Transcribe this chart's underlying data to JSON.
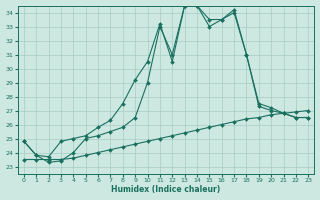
{
  "xlabel": "Humidex (Indice chaleur)",
  "bg_color": "#cce8e0",
  "grid_color": "#a8ccc4",
  "line_color": "#1a7060",
  "xlim": [
    -0.5,
    23.5
  ],
  "ylim": [
    22.5,
    34.5
  ],
  "yticks": [
    23,
    24,
    25,
    26,
    27,
    28,
    29,
    30,
    31,
    32,
    33,
    34
  ],
  "xticks": [
    0,
    1,
    2,
    3,
    4,
    5,
    6,
    7,
    8,
    9,
    10,
    11,
    12,
    13,
    14,
    15,
    16,
    17,
    18,
    19,
    20,
    21,
    22,
    23
  ],
  "series1_x": [
    0,
    1,
    2,
    3,
    4,
    5,
    6,
    7,
    8,
    9,
    10,
    11,
    12,
    13,
    14,
    15,
    16,
    17,
    18,
    19,
    20,
    21,
    22,
    23
  ],
  "series1_y": [
    24.8,
    23.8,
    23.7,
    24.8,
    25.0,
    25.2,
    25.8,
    26.3,
    27.5,
    29.2,
    30.5,
    33.2,
    30.5,
    34.5,
    34.5,
    33.0,
    33.5,
    34.0,
    31.0,
    27.5,
    27.2,
    26.8,
    26.5,
    26.5
  ],
  "series2_x": [
    0,
    1,
    2,
    3,
    4,
    5,
    6,
    7,
    8,
    9,
    10,
    11,
    12,
    13,
    14,
    15,
    16,
    17,
    18,
    19,
    20,
    21,
    22,
    23
  ],
  "series2_y": [
    24.8,
    23.8,
    23.3,
    23.4,
    24.0,
    25.0,
    25.2,
    25.5,
    25.8,
    26.5,
    29.0,
    33.0,
    31.0,
    34.5,
    34.5,
    33.5,
    33.5,
    34.2,
    31.0,
    27.3,
    27.0,
    26.8,
    26.5,
    26.5
  ],
  "series3_x": [
    0,
    1,
    2,
    3,
    4,
    5,
    6,
    7,
    8,
    9,
    10,
    11,
    12,
    13,
    14,
    15,
    16,
    17,
    18,
    19,
    20,
    21,
    22,
    23
  ],
  "series3_y": [
    23.5,
    23.5,
    23.5,
    23.5,
    23.6,
    23.8,
    24.0,
    24.2,
    24.4,
    24.6,
    24.8,
    25.0,
    25.2,
    25.4,
    25.6,
    25.8,
    26.0,
    26.2,
    26.4,
    26.5,
    26.7,
    26.8,
    26.9,
    27.0
  ]
}
